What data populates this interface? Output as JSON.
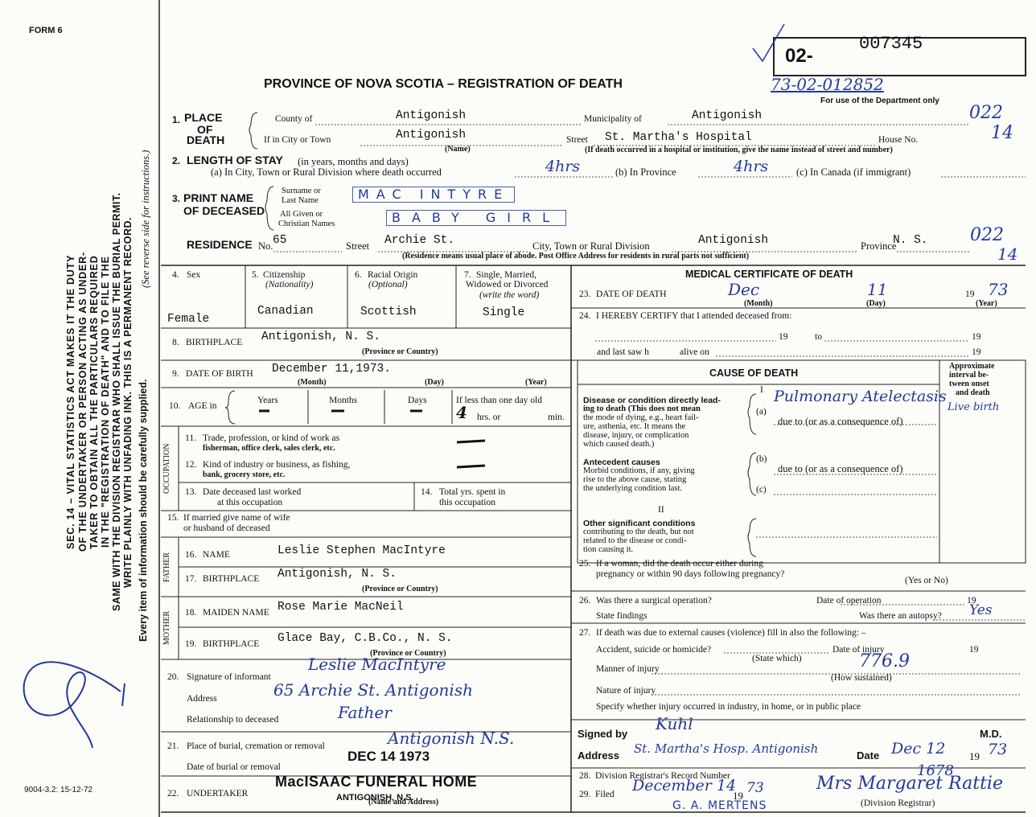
{
  "header": {
    "form": "FORM 6",
    "title": "PROVINCE OF NOVA SCOTIA – REGISTRATION OF DEATH",
    "reg_prefix": "02-",
    "reg_number": "007345",
    "dept_number": "73-02-012852",
    "dept_note": "For use of the Department only"
  },
  "margin": {
    "instructions": [
      "SEC. 14 – VITAL STATISTICS ACT MAKES IT THE DUTY",
      "OF THE UNDERTAKER OR PERSON ACTING AS UNDER-",
      "TAKER TO OBTAIN ALL THE PARTICULARS REQUIRED",
      "IN THE \"REGISTRATION OF DEATH\" AND TO FILE THE",
      "SAME WITH THE DIVISION REGISTRAR WHO SHALL ISSUE THE BURIAL PERMIT.",
      "WRITE PLAINLY WITH UNFADING INK. THIS IS A PERMANENT RECORD."
    ],
    "care_note": "Every item of information should be carefully supplied.",
    "reverse_note": "(See reverse side for instructions.)",
    "form_code": "9004-3.2: 15-12-72"
  },
  "place": {
    "number": "1.",
    "label_lines": [
      "PLACE",
      "OF",
      "DEATH"
    ],
    "county_label": "County of",
    "county": "Antigonish",
    "municipality_label": "Municipality of",
    "municipality": "Antigonish",
    "municipality_code": "022",
    "city_label": "If in City or Town",
    "city": "Antigonish",
    "name_note": "(Name)",
    "street_label": "Street",
    "street": "St. Martha's Hospital",
    "house_label": "House No.",
    "house_no": "14",
    "hospital_note": "(If death occurred in a hospital or institution, give the name instead of street and number)"
  },
  "stay": {
    "number": "2.",
    "label": "LENGTH OF STAY",
    "label_note": "(in years, months and days)",
    "city_label": "(a) In City, Town or Rural Division where death occurred",
    "city_value": "4hrs",
    "province_label": "(b) In Province",
    "province_value": "4hrs",
    "canada_label": "(c) In Canada (if immigrant)"
  },
  "name": {
    "number": "3.",
    "label_lines": [
      "PRINT NAME",
      "OF DECEASED"
    ],
    "surname_label": [
      "Surname or",
      "Last Name"
    ],
    "surname": "MAC INTYRE",
    "given_label": [
      "All Given or",
      "Christian Names"
    ],
    "given": "BABY GIRL"
  },
  "residence": {
    "label": "RESIDENCE",
    "no_label": "No.",
    "no": "65",
    "street_label": "Street",
    "street": "Archie St.",
    "city_label": "City, Town or Rural Division",
    "city": "Antigonish",
    "province_label": "Province",
    "province": "N. S.",
    "code": "022",
    "code2": "14",
    "note": "(Residence means usual place of abode. Post Office Address for residents in rural parts not sufficient)"
  },
  "personal": {
    "sex": {
      "number": "4.",
      "label": "Sex",
      "value": "Female"
    },
    "citizenship": {
      "number": "5.",
      "label": "Citizenship",
      "note": "(Nationality)",
      "value": "Canadian"
    },
    "racial": {
      "number": "6.",
      "label": "Racial Origin",
      "note": "(Optional)",
      "value": "Scottish"
    },
    "marital": {
      "number": "7.",
      "label_lines": [
        "Single, Married,",
        "Widowed or Divorced"
      ],
      "note": "(write the word)",
      "value": "Single"
    }
  },
  "birthplace": {
    "number": "8.",
    "label": "BIRTHPLACE",
    "value": "Antigonish, N. S.",
    "note": "(Province or Country)"
  },
  "dob": {
    "number": "9.",
    "label": "DATE OF BIRTH",
    "value": "December 11,1973.",
    "month": "(Month)",
    "day": "(Day)",
    "year": "(Year)"
  },
  "age": {
    "number": "10.",
    "label": "AGE in",
    "years_label": "Years",
    "years": "—",
    "months_label": "Months",
    "months": "—",
    "days_label": "Days",
    "days": "—",
    "under_day_label": "If less than one day old",
    "hours": "4",
    "hours_label": "hrs. or",
    "min_label": "min."
  },
  "occupation": {
    "side": "OCCUPATION",
    "trade": {
      "number": "11.",
      "label_lines": [
        "Trade, profession, or kind of work as",
        "fisherman, office clerk, sales clerk, etc."
      ],
      "value": "—"
    },
    "industry": {
      "number": "12.",
      "label_lines": [
        "Kind of industry or business, as fishing,",
        "bank, grocery store, etc."
      ],
      "value": "—"
    },
    "last_worked": {
      "number": "13.",
      "label_lines": [
        "Date deceased last worked",
        "at this occupation"
      ]
    },
    "years": {
      "number": "14.",
      "label_lines": [
        "Total yrs. spent in",
        "this occupation"
      ]
    }
  },
  "spouse": {
    "number": "15.",
    "label_lines": [
      "If married give name of wife",
      "or husband of deceased"
    ]
  },
  "father": {
    "side": "FATHER",
    "name": {
      "number": "16.",
      "label": "NAME",
      "value": "Leslie Stephen MacIntyre"
    },
    "birthplace": {
      "number": "17.",
      "label": "BIRTHPLACE",
      "value": "Antigonish, N. S.",
      "note": "(Province or Country)"
    }
  },
  "mother": {
    "side": "MOTHER",
    "maiden": {
      "number": "18.",
      "label": "MAIDEN NAME",
      "value": "Rose Marie MacNeil"
    },
    "birthplace": {
      "number": "19.",
      "label": "BIRTHPLACE",
      "value": "Glace Bay, C.B.Co., N. S.",
      "note": "(Province or Country)"
    }
  },
  "informant": {
    "number": "20.",
    "signature_label": "Signature of informant",
    "signature": "Leslie MacIntyre",
    "address_label": "Address",
    "address": "65 Archie St. Antigonish",
    "relationship_label": "Relationship to deceased",
    "relationship": "Father"
  },
  "burial": {
    "number": "21.",
    "place_label": "Place of burial, cremation or removal",
    "place": "Antigonish N.S.",
    "date_label": "Date of burial or removal",
    "date": "DEC 14 1973"
  },
  "undertaker": {
    "number": "22.",
    "label": "UNDERTAKER",
    "value": "MacISAAC FUNERAL HOME",
    "town": "ANTIGONISH, N.S.",
    "note": "(Name and Address)"
  },
  "medical": {
    "title": "MEDICAL CERTIFICATE OF DEATH",
    "death_date": {
      "number": "23.",
      "label": "DATE OF DEATH",
      "month": "Dec",
      "month_note": "(Month)",
      "day": "11",
      "day_note": "(Day)",
      "year_prefix": "19",
      "year": "73",
      "year_note": "(Year)"
    },
    "attended": {
      "number": "24.",
      "text": "I HEREBY CERTIFY that I attended deceased from:",
      "from_year": "19",
      "to": "to",
      "to_year": "19",
      "last_seen": "and last saw h",
      "alive": "alive on",
      "alive_year": "19"
    },
    "cause": {
      "title": "CAUSE OF DEATH",
      "part1": "I",
      "interval_lines": [
        "Approximate",
        "interval be-",
        "tween onset",
        "and death"
      ],
      "direct_lines": [
        "Disease or condition directly lead-",
        "ing to death (This does not mean",
        "the mode of dying, e.g., heart fail-",
        "ure, asthenia, etc. It means the",
        "disease, injury, or complication",
        "which caused death.)"
      ],
      "a": "(a)",
      "a_value": "Pulmonary Atelectasis",
      "a_interval": "Live birth",
      "due1": "due to (or as a consequence of)",
      "antecedent_lines": [
        "Antecedent causes",
        "Morbid conditions, if any, giving",
        "rise to the above cause, stating",
        "the underlying condition last."
      ],
      "b": "(b)",
      "due2": "due to (or as a consequence of)",
      "c": "(c)",
      "part2": "II",
      "other_lines": [
        "Other significant conditions",
        "contributing to the death, but not",
        "related to the disease or condi-",
        "tion causing it."
      ]
    },
    "pregnancy": {
      "number": "25.",
      "label_lines": [
        "If a woman, did the death occur either during",
        "pregnancy or within 90 days following pregnancy?"
      ],
      "note": "(Yes or No)"
    },
    "operation": {
      "number": "26.",
      "surgery": "Was there a surgical operation?",
      "date_label": "Date of operation",
      "year_prefix": "19",
      "findings": "State findings",
      "autopsy": "Was there an autopsy?",
      "autopsy_value": "Yes"
    },
    "external": {
      "number": "27.",
      "text": "If death was due to external causes (violence) fill in also the following: –",
      "accident": "Accident, suicide or homicide?",
      "date_injury": "Date of injury",
      "year_prefix": "19",
      "state_note": "(State which)",
      "code": "776.9",
      "manner": "Manner of injury",
      "how_note": "(How sustained)",
      "nature": "Nature of injury",
      "specify": "Specify whether injury occurred in industry, in home, or in public place"
    },
    "signed": {
      "label": "Signed by",
      "signature": "Kuhl",
      "md": "M.D.",
      "address_label": "Address",
      "address": "St. Martha's Hosp. Antigonish",
      "date_label": "Date",
      "date": "Dec 12",
      "year_prefix": "19",
      "year": "73"
    }
  },
  "registrar": {
    "record": {
      "number": "28.",
      "label": "Division Registrar's Record Number",
      "value": "1678"
    },
    "filed": {
      "number": "29.",
      "label": "Filed",
      "value": "December 14",
      "year_prefix": "19",
      "year": "73",
      "registrar": "Mrs Margaret Rattie",
      "registrar_note": "(Division Registrar)",
      "stamp": "G. A. MERTENS"
    }
  }
}
